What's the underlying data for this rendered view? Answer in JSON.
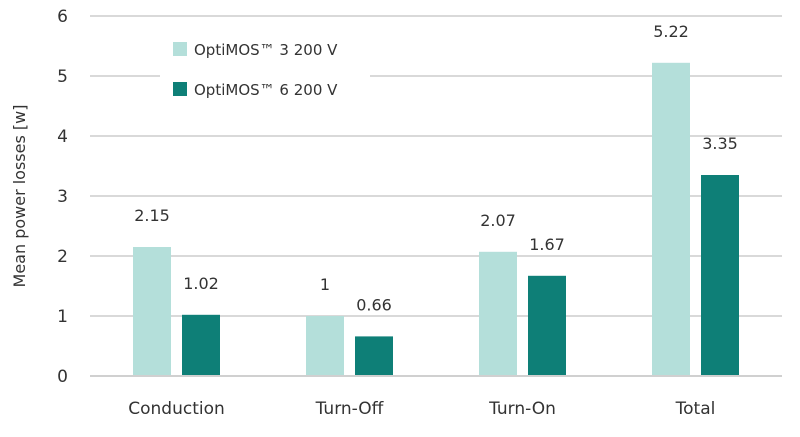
{
  "chart_data": {
    "type": "bar",
    "title": "",
    "xlabel": "",
    "ylabel": "Mean power losses [w]",
    "ylim": [
      0,
      6
    ],
    "yticks": [
      0,
      1,
      2,
      3,
      4,
      5,
      6
    ],
    "grid": true,
    "legend_position": "top-left",
    "categories": [
      "Conduction",
      "Turn-Off",
      "Turn-On",
      "Total"
    ],
    "series": [
      {
        "name": "OptiMOS™ 3 200 V",
        "color": "#b4dfda",
        "values": [
          2.15,
          1,
          2.07,
          5.22
        ],
        "labels": [
          "2.15",
          "1",
          "2.07",
          "5.22"
        ]
      },
      {
        "name": "OptiMOS™ 6 200 V",
        "color": "#0e7f77",
        "values": [
          1.02,
          0.66,
          1.67,
          3.35
        ],
        "labels": [
          "1.02",
          "0.66",
          "1.67",
          "3.35"
        ]
      }
    ]
  }
}
